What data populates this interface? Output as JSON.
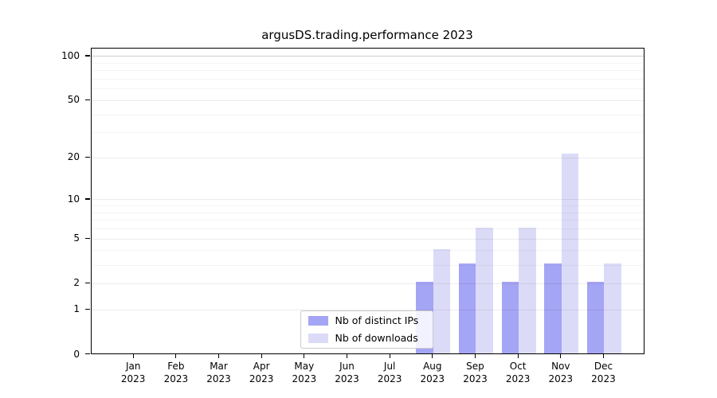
{
  "chart_data": {
    "type": "bar",
    "title": "argusDS.trading.performance 2023",
    "categories": [
      "Jan",
      "Feb",
      "Mar",
      "Apr",
      "May",
      "Jun",
      "Jul",
      "Aug",
      "Sep",
      "Oct",
      "Nov",
      "Dec"
    ],
    "x_year_label": "2023",
    "series": [
      {
        "name": "Nb of distinct IPs",
        "color": "#a5a5f5",
        "values": [
          0,
          0,
          0,
          0,
          0,
          0,
          0,
          2,
          3,
          2,
          3,
          2
        ]
      },
      {
        "name": "Nb of downloads",
        "color": "#dbdbf8",
        "values": [
          0,
          0,
          0,
          0,
          0,
          0,
          0,
          4,
          6,
          6,
          21,
          3
        ]
      }
    ],
    "yscale": "log1p",
    "ylim": [
      0,
      113
    ],
    "ytick_values": [
      0,
      1,
      2,
      5,
      10,
      20,
      50,
      100
    ],
    "ytick_labels": [
      "0",
      "1",
      "2",
      "5",
      "10",
      "20",
      "50",
      "100"
    ],
    "minor_ytick_values": [
      3,
      4,
      6,
      7,
      8,
      9,
      30,
      40,
      60,
      70,
      80,
      90
    ],
    "grid": "both",
    "legend_position": "lower center",
    "axis_color": "#000000",
    "background_color": "#ffffff"
  }
}
